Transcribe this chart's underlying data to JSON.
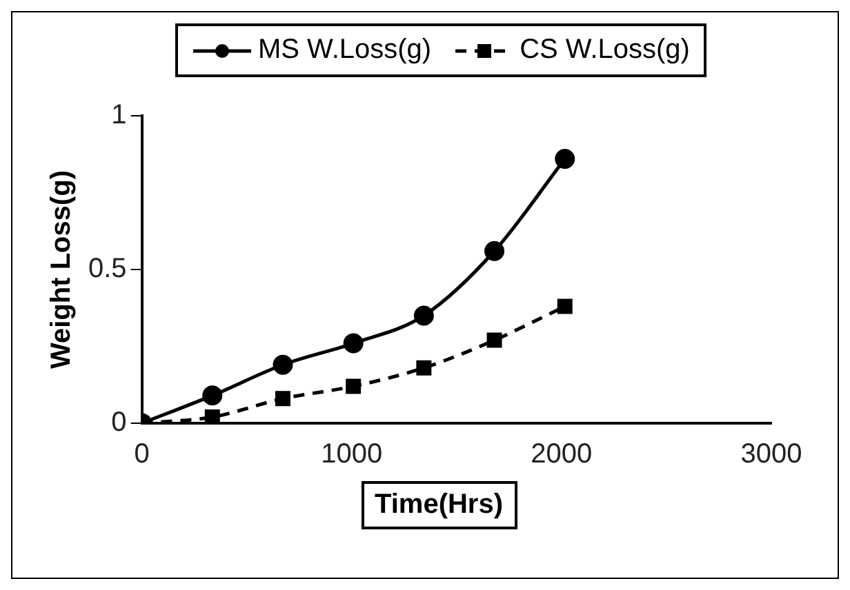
{
  "chart_data": {
    "type": "line",
    "xlabel": "Time(Hrs)",
    "ylabel": "Weight Loss(g)",
    "x": [
      0,
      336,
      672,
      1008,
      1344,
      1680,
      2016
    ],
    "series": [
      {
        "name": "MS W.Loss(g)",
        "color": "#000000",
        "marker": "circle",
        "line_style": "solid",
        "values": [
          0,
          0.09,
          0.19,
          0.26,
          0.35,
          0.56,
          0.86
        ]
      },
      {
        "name": "CS W.Loss(g)",
        "color": "#000000",
        "marker": "square",
        "line_style": "dashed",
        "values": [
          0,
          0.02,
          0.08,
          0.12,
          0.18,
          0.27,
          0.38
        ]
      }
    ],
    "xlim": [
      0,
      3000
    ],
    "xticks": [
      0,
      1000,
      2000,
      3000
    ],
    "ylim": [
      0,
      1
    ],
    "yticks": [
      0,
      0.5,
      1
    ],
    "grid": false,
    "legend": "top"
  }
}
